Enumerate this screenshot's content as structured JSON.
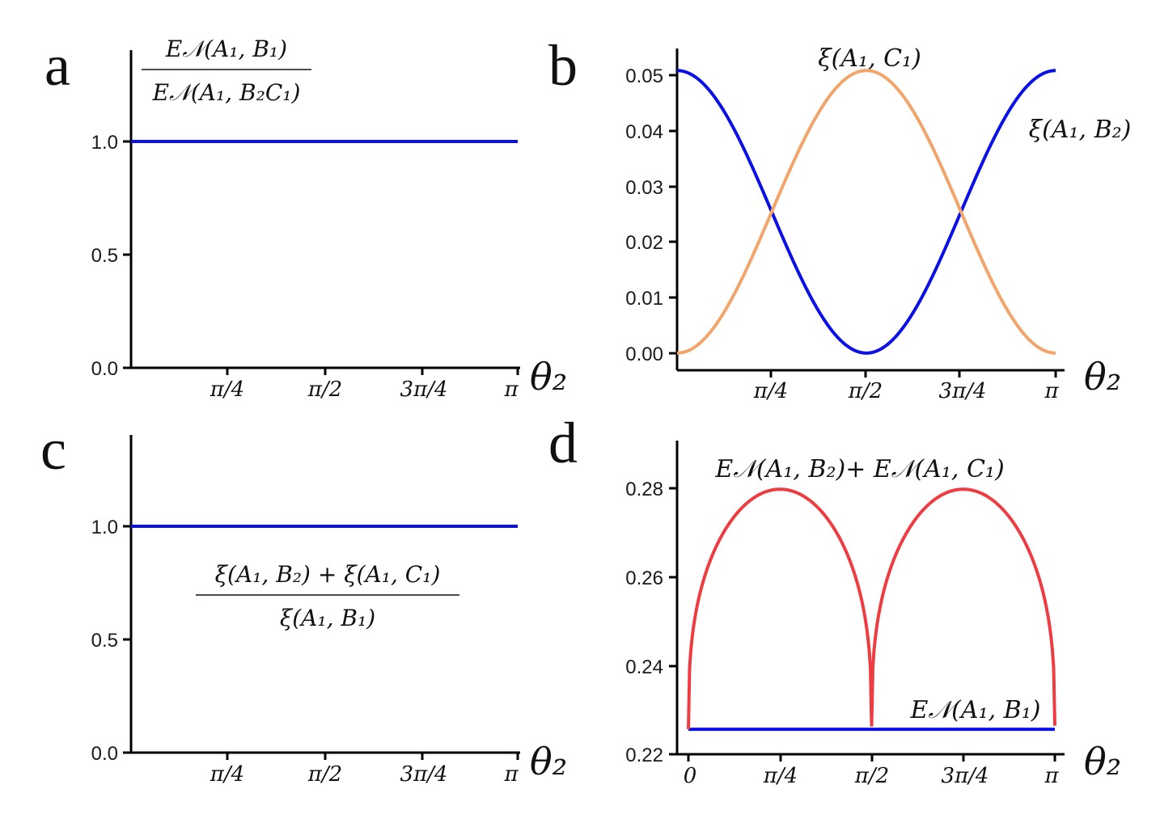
{
  "figure": {
    "theme": {
      "blue": "#0a10e6",
      "orange": "#f2a56a",
      "red": "#ee3d42",
      "axis": "#000000"
    }
  },
  "chart_data": [
    {
      "panel": "a",
      "type": "line",
      "annotation": {
        "numerator": "E𝒩(A₁, B₁)",
        "denominator": "E𝒩(A₁, B₂C₁)"
      },
      "xlabel": "θ₂",
      "x_ticks": [
        "π/4",
        "π/2",
        "3π/4",
        "π"
      ],
      "xlim": [
        0,
        3.14159
      ],
      "ylim": [
        0,
        1.4
      ],
      "y_ticks": [
        "0.0",
        "0.5",
        "1.0"
      ],
      "series": [
        {
          "name": "ratio",
          "color": "#0a10e6",
          "function": "constant",
          "value": 1.0
        }
      ]
    },
    {
      "panel": "b",
      "type": "line",
      "xlabel": "θ₂",
      "x_ticks": [
        "π/4",
        "π/2",
        "3π/4",
        "π"
      ],
      "xlim": [
        0,
        3.14159
      ],
      "ylim": [
        -0.003,
        0.053
      ],
      "y_ticks": [
        "0.00",
        "0.01",
        "0.02",
        "0.03",
        "0.04",
        "0.05"
      ],
      "series": [
        {
          "name": "ξ(A₁, B₂)",
          "color": "#0a10e6",
          "function": "cos2",
          "amplitude": 0.0493
        },
        {
          "name": "ξ(A₁, C₁)",
          "color": "#f2a56a",
          "function": "sin2",
          "amplitude": 0.0493
        }
      ]
    },
    {
      "panel": "c",
      "type": "line",
      "annotation": {
        "numerator": "ξ(A₁, B₂) + ξ(A₁, C₁)",
        "denominator": "ξ(A₁, B₁)"
      },
      "xlabel": "θ₂",
      "x_ticks": [
        "π/4",
        "π/2",
        "3π/4",
        "π"
      ],
      "xlim": [
        0,
        3.14159
      ],
      "ylim": [
        0,
        1.4
      ],
      "y_ticks": [
        "0.0",
        "0.5",
        "1.0"
      ],
      "series": [
        {
          "name": "ratio",
          "color": "#0a10e6",
          "function": "constant",
          "value": 1.0
        }
      ]
    },
    {
      "panel": "d",
      "type": "line",
      "xlabel": "θ₂",
      "x_ticks": [
        "0",
        "π/4",
        "π/2",
        "3π/4",
        "π"
      ],
      "xlim": [
        0,
        3.14159
      ],
      "ylim": [
        0.22,
        0.289
      ],
      "y_ticks": [
        "0.22",
        "0.24",
        "0.26",
        "0.28"
      ],
      "series": [
        {
          "name": "E𝒩(A₁, B₂)+ E𝒩(A₁, C₁)",
          "color": "#ee3d42",
          "function": "arch",
          "base": 0.2255,
          "peak": 0.2783
        },
        {
          "name": "E𝒩(A₁, B₁)",
          "color": "#0a10e6",
          "function": "constant",
          "value": 0.2255
        }
      ]
    }
  ]
}
